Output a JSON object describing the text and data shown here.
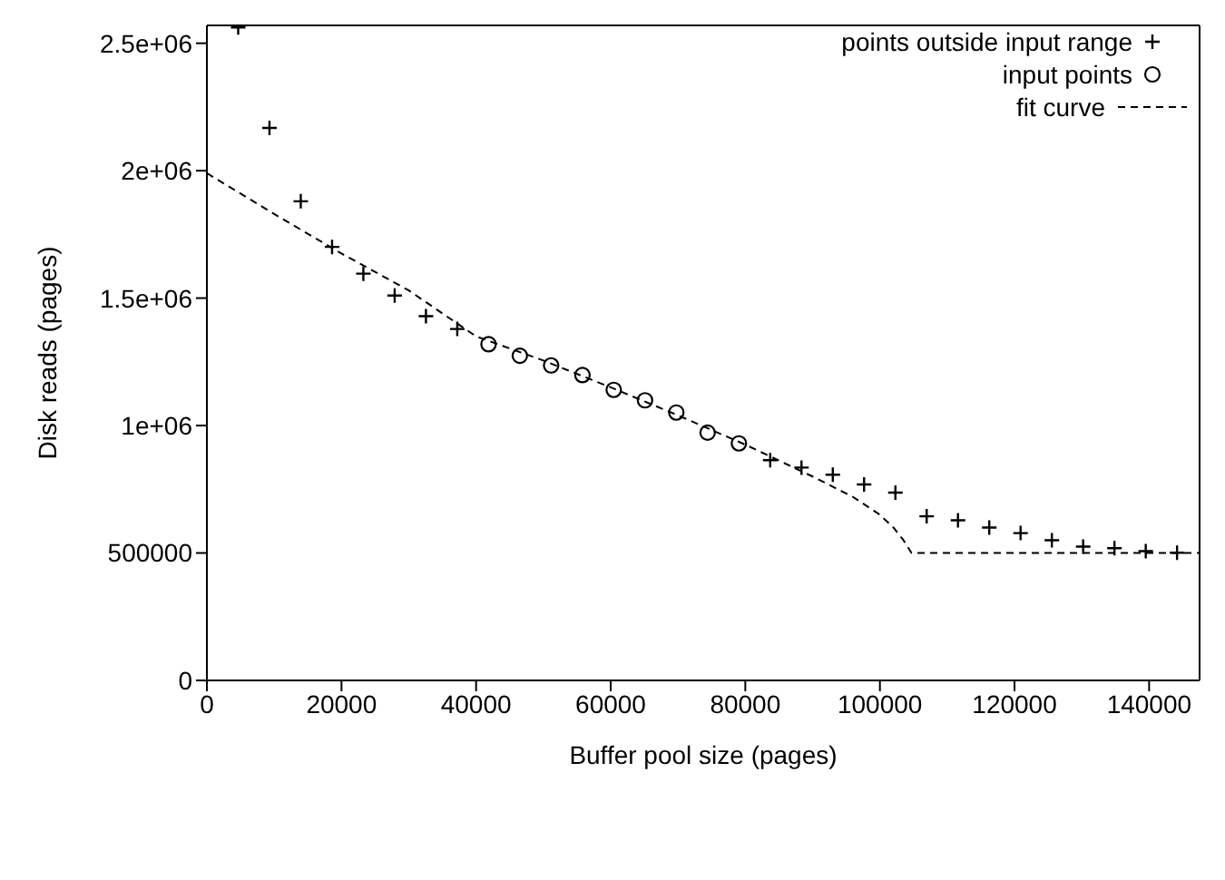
{
  "chart_data": {
    "type": "scatter",
    "xlabel": "Buffer pool size (pages)",
    "ylabel": "Disk reads (pages)",
    "xlim": [
      0,
      147500
    ],
    "xticks": [
      0,
      20000,
      40000,
      60000,
      80000,
      100000,
      120000,
      140000
    ],
    "ylim": [
      0,
      2570000
    ],
    "yticks": [
      0,
      500000,
      {
        "value": 1000000,
        "label": "1e+06"
      },
      {
        "value": 1500000,
        "label": "1.5e+06"
      },
      {
        "value": 2000000,
        "label": "2e+06"
      },
      {
        "value": 2500000,
        "label": "2.5e+06"
      }
    ],
    "legend": "top right",
    "line_style": "dashed",
    "series": [
      {
        "name": "points outside input range",
        "marker": "cross",
        "color": "#000000",
        "x": [
          4650,
          9300,
          13950,
          18600,
          23250,
          27900,
          32550,
          37200,
          83700,
          88350,
          93000,
          97650,
          102300,
          106950,
          111600,
          116250,
          120900,
          125550,
          130200,
          134850,
          139500,
          144150
        ],
        "values": [
          2562000,
          2168000,
          1880000,
          1701000,
          1596000,
          1510000,
          1429000,
          1379000,
          864000,
          835000,
          807000,
          769000,
          737000,
          644000,
          628000,
          600000,
          578000,
          550000,
          525000,
          519000,
          507000,
          501000
        ]
      },
      {
        "name": "input points",
        "marker": "circle",
        "color": "#000000",
        "x": [
          41850,
          46500,
          51150,
          55800,
          60450,
          65100,
          69750,
          74400,
          79050
        ],
        "values": [
          1319000,
          1274000,
          1236000,
          1198000,
          1140000,
          1099000,
          1051000,
          972000,
          930000
        ]
      },
      {
        "name": "fit curve",
        "type": "line",
        "marker": "none",
        "color": "#000000",
        "x": [
          0,
          10000,
          20000,
          30000,
          40000,
          50000,
          60000,
          70000,
          80000,
          90000,
          96000,
          100000,
          102000,
          103500,
          104700,
          147500
        ],
        "values": [
          1990000,
          1830000,
          1675000,
          1530000,
          1350000,
          1255000,
          1150000,
          1040000,
          925000,
          800000,
          720000,
          650000,
          600000,
          550000,
          500000,
          500000
        ]
      }
    ]
  }
}
